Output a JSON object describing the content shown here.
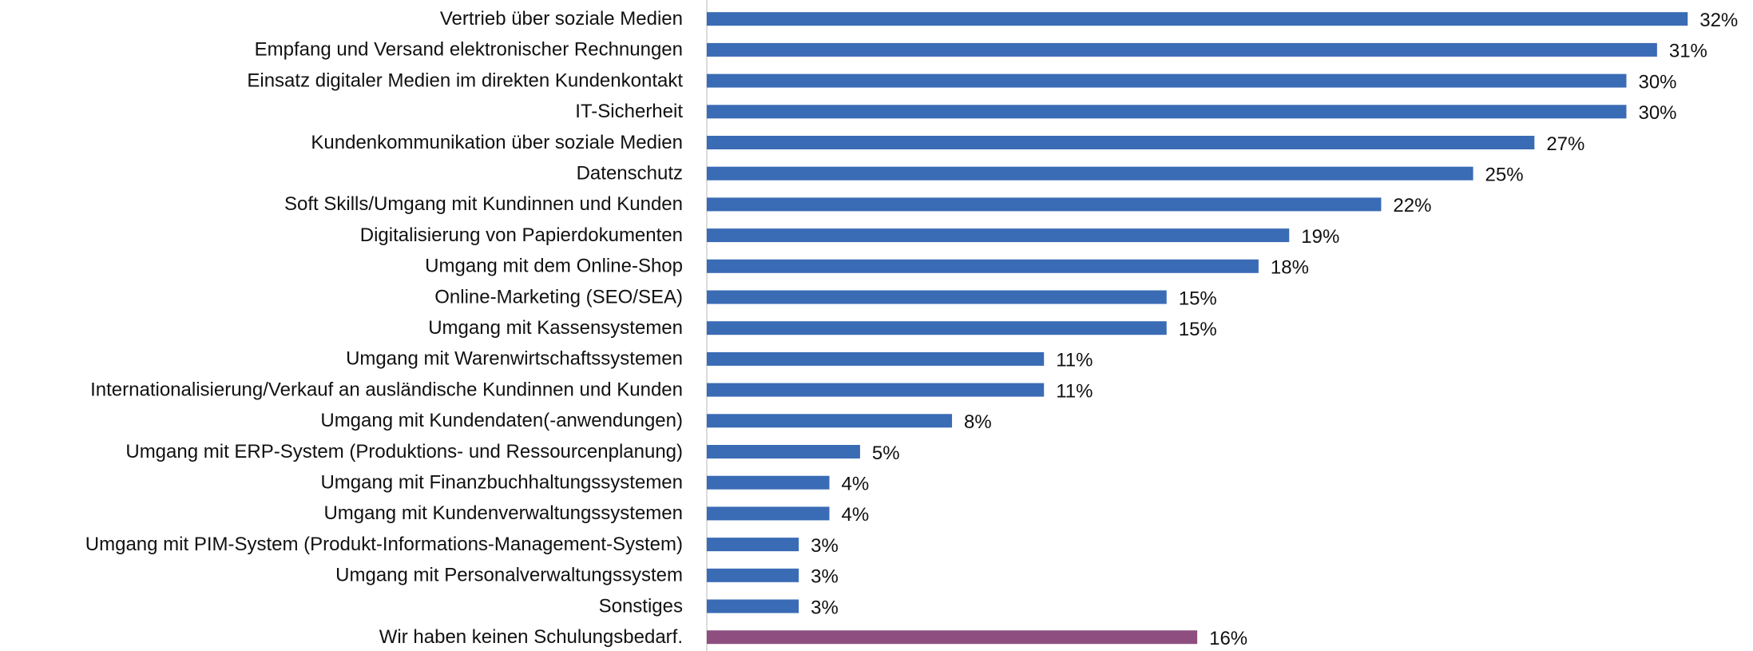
{
  "chart_data": {
    "type": "barh",
    "categories": [
      "Vertrieb über soziale Medien",
      "Empfang und Versand elektronischer Rechnungen",
      "Einsatz digitaler Medien im direkten Kundenkontakt",
      "IT-Sicherheit",
      "Kundenkommunikation über soziale Medien",
      "Datenschutz",
      "Soft Skills/Umgang mit Kundinnen und Kunden",
      "Digitalisierung von Papierdokumenten",
      "Umgang mit dem Online-Shop",
      "Online-Marketing (SEO/SEA)",
      "Umgang mit Kassensystemen",
      "Umgang mit Warenwirtschaftssystemen",
      "Internationalisierung/Verkauf an ausländische Kundinnen und Kunden",
      "Umgang mit Kundendaten(-anwendungen)",
      "Umgang mit ERP-System (Produktions- und Ressourcenplanung)",
      "Umgang mit Finanzbuchhaltungssystemen",
      "Umgang mit Kundenverwaltungssystemen",
      "Umgang mit PIM-System (Produkt-Informations-Management-System)",
      "Umgang mit Personalverwaltungssystem",
      "Sonstiges",
      "Wir haben keinen Schulungsbedarf."
    ],
    "values": [
      32,
      31,
      30,
      30,
      27,
      25,
      22,
      19,
      18,
      15,
      15,
      11,
      11,
      8,
      5,
      4,
      4,
      3,
      3,
      3,
      16
    ],
    "value_labels": [
      "32%",
      "31%",
      "30%",
      "30%",
      "27%",
      "25%",
      "22%",
      "19%",
      "18%",
      "15%",
      "15%",
      "11%",
      "11%",
      "8%",
      "5%",
      "4%",
      "4%",
      "3%",
      "3%",
      "3%",
      "16%"
    ],
    "colors": [
      "#3a6bb5",
      "#3a6bb5",
      "#3a6bb5",
      "#3a6bb5",
      "#3a6bb5",
      "#3a6bb5",
      "#3a6bb5",
      "#3a6bb5",
      "#3a6bb5",
      "#3a6bb5",
      "#3a6bb5",
      "#3a6bb5",
      "#3a6bb5",
      "#3a6bb5",
      "#3a6bb5",
      "#3a6bb5",
      "#3a6bb5",
      "#3a6bb5",
      "#3a6bb5",
      "#3a6bb5",
      "#8e4f80"
    ],
    "xlim": [
      0,
      34
    ]
  }
}
